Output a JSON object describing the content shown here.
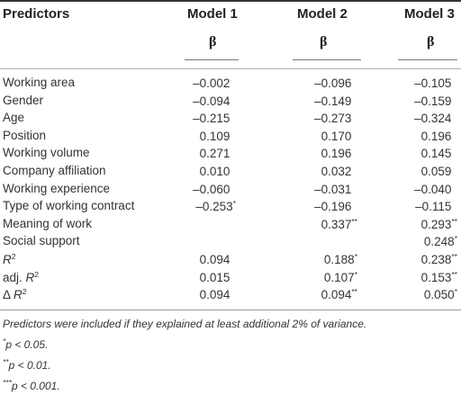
{
  "table": {
    "header": {
      "predictors": "Predictors",
      "models": [
        "Model 1",
        "Model 2",
        "Model 3"
      ],
      "beta": "β"
    },
    "rows": [
      {
        "label": "Working area",
        "m1": "–0.002",
        "m2": "–0.096",
        "m3": "–0.105"
      },
      {
        "label": "Gender",
        "m1": "–0.094",
        "m2": "–0.149",
        "m3": "–0.159"
      },
      {
        "label": "Age",
        "m1": "–0.215",
        "m2": "–0.273",
        "m3": "–0.324"
      },
      {
        "label": "Position",
        "m1": "0.109",
        "m2": "0.170",
        "m3": "0.196"
      },
      {
        "label": "Working volume",
        "m1": "0.271",
        "m2": "0.196",
        "m3": "0.145"
      },
      {
        "label": "Company affiliation",
        "m1": "0.010",
        "m2": "0.032",
        "m3": "0.059"
      },
      {
        "label": "Working experience",
        "m1": "–0.060",
        "m2": "–0.031",
        "m3": "–0.040"
      },
      {
        "label": "Type of working contract",
        "m1": "–0.253",
        "m1_sig": "*",
        "m2": "–0.196",
        "m3": "–0.115"
      },
      {
        "label": "Meaning of work",
        "m1": "",
        "m2": "0.337",
        "m2_sig": "**",
        "m3": "0.293",
        "m3_sig": "**"
      },
      {
        "label": "Social support",
        "m1": "",
        "m2": "",
        "m3": "0.248",
        "m3_sig": "*"
      },
      {
        "label": "R",
        "label_sup": "2",
        "m1": "0.094",
        "m2": "0.188",
        "m2_sig": "*",
        "m3": "0.238",
        "m3_sig": "**"
      },
      {
        "label_prefix": "adj. ",
        "label": "R",
        "label_sup": "2",
        "m1": "0.015",
        "m2": "0.107",
        "m2_sig": "*",
        "m3": "0.153",
        "m3_sig": "**"
      },
      {
        "label_prefix": "Δ ",
        "label": "R",
        "label_sup": "2",
        "m1": "0.094",
        "m2": "0.094",
        "m2_sig": "**",
        "m3": "0.050",
        "m3_sig": "*"
      }
    ]
  },
  "notes": {
    "line1": "Predictors were included if they explained at least additional 2% of variance.",
    "line2_sup": "*",
    "line2": "p < 0.05.",
    "line3_sup": "**",
    "line3": "p < 0.01.",
    "line4_sup": "***",
    "line4": "p < 0.001."
  }
}
